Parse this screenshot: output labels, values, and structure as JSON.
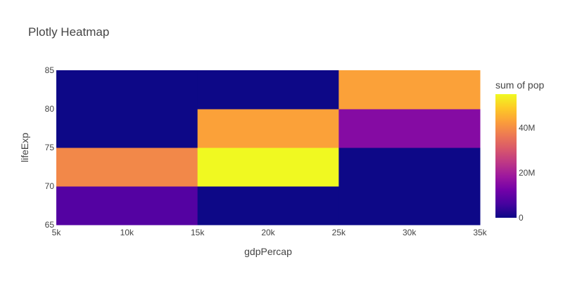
{
  "chart_data": {
    "type": "heatmap",
    "title": "Plotly Heatmap",
    "xlabel": "gdpPercap",
    "ylabel": "lifeExp",
    "xlim": [
      5000,
      35000
    ],
    "ylim": [
      65,
      85
    ],
    "x_ticks": [
      {
        "value": 5000,
        "label": "5k"
      },
      {
        "value": 10000,
        "label": "10k"
      },
      {
        "value": 15000,
        "label": "15k"
      },
      {
        "value": 20000,
        "label": "20k"
      },
      {
        "value": 25000,
        "label": "25k"
      },
      {
        "value": 30000,
        "label": "30k"
      },
      {
        "value": 35000,
        "label": "35k"
      }
    ],
    "y_ticks": [
      {
        "value": 65,
        "label": "65"
      },
      {
        "value": 70,
        "label": "70"
      },
      {
        "value": 75,
        "label": "75"
      },
      {
        "value": 80,
        "label": "80"
      },
      {
        "value": 85,
        "label": "85"
      }
    ],
    "x_bins": [
      [
        5000,
        15000
      ],
      [
        15000,
        25000
      ],
      [
        25000,
        35000
      ]
    ],
    "y_bins": [
      [
        65,
        70
      ],
      [
        70,
        75
      ],
      [
        75,
        80
      ],
      [
        80,
        85
      ]
    ],
    "z": [
      [
        8000000,
        0,
        0
      ],
      [
        39000000,
        55000000,
        0
      ],
      [
        0,
        43000000,
        15000000
      ],
      [
        0,
        0,
        43000000
      ]
    ],
    "colorbar": {
      "title": "sum of pop",
      "range": [
        0,
        55000000
      ],
      "ticks": [
        {
          "value": 0,
          "label": "0"
        },
        {
          "value": 20000000,
          "label": "20M"
        },
        {
          "value": 40000000,
          "label": "40M"
        }
      ]
    },
    "colorscale": [
      "#0d0887",
      "#46039f",
      "#7201a8",
      "#9c179e",
      "#bd3786",
      "#d8576b",
      "#ed7953",
      "#fb9f3a",
      "#fdca26",
      "#f0f921"
    ]
  }
}
